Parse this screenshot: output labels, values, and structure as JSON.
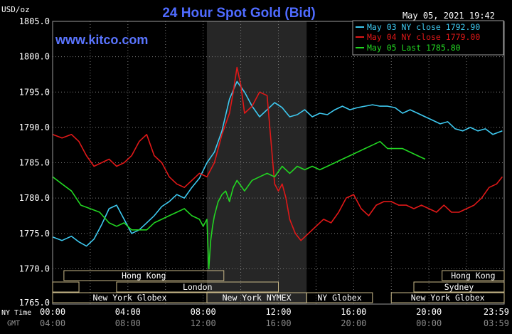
{
  "header": {
    "units": "USD/oz",
    "title": "24 Hour Spot Gold (Bid)",
    "timestamp": "May 05, 2021 19:42",
    "watermark": "www.kitco.com"
  },
  "colors": {
    "background": "#000000",
    "grid": "#7a7a7a",
    "text": "#ffffff",
    "title": "#4f6bff",
    "watermark": "#5a75ff",
    "may03": "#3ec9f0",
    "may04": "#e01818",
    "may05": "#22d622",
    "ny_shading": "#262626",
    "session_box": "#c8b888"
  },
  "legend": {
    "items": [
      {
        "label": "May 03 NY close 1792.90",
        "color": "#3ec9f0"
      },
      {
        "label": "May 04 NY close 1779.00",
        "color": "#e01818"
      },
      {
        "label": "May 05 Last 1785.80",
        "color": "#22d622"
      }
    ]
  },
  "axis": {
    "ny_time_label": "NY Time",
    "gmt_label": "GMT",
    "ny_ticks": [
      "00:00",
      "04:00",
      "08:00",
      "12:00",
      "16:00",
      "20:00",
      "23:59"
    ],
    "gmt_ticks": [
      "04:00",
      "08:00",
      "12:00",
      "16:00",
      "20:00",
      "00:00",
      "03:59"
    ]
  },
  "sessions": [
    {
      "label": "Hong Kong",
      "start": 0.6,
      "end": 9.1,
      "row": 0
    },
    {
      "label": "Hong Kong",
      "start": 20.7,
      "end": 24,
      "row": 0
    },
    {
      "label": "",
      "start": 0.0,
      "end": 1.4,
      "row": 1
    },
    {
      "label": "London",
      "start": 3.4,
      "end": 12.0,
      "row": 1
    },
    {
      "label": "Sydney",
      "start": 19.2,
      "end": 24,
      "row": 1
    },
    {
      "label": "New York Globex",
      "start": 0.0,
      "end": 8.2,
      "row": 2
    },
    {
      "label": "New York NYMEX",
      "start": 8.2,
      "end": 13.5,
      "row": 2
    },
    {
      "label": "NY Globex",
      "start": 13.5,
      "end": 17.0,
      "row": 2
    },
    {
      "label": "New York Globex",
      "start": 18.0,
      "end": 24,
      "row": 2
    }
  ],
  "chart_data": {
    "type": "line",
    "ylim": [
      1765,
      1805
    ],
    "xlim": [
      0,
      24
    ],
    "yticks": [
      1770,
      1775,
      1780,
      1785,
      1790,
      1795,
      1800,
      1805
    ],
    "ytick_labels": [
      "1770.0",
      "1775.0",
      "1780.0",
      "1785.0",
      "1790.0",
      "1795.0",
      "1800.0",
      "1805.0"
    ],
    "xticks": [
      0,
      4,
      8,
      12,
      16,
      20,
      24
    ],
    "ylabel": "USD/oz",
    "grid": true,
    "legend_position": "top-right",
    "shaded_region": [
      8.2,
      13.5
    ],
    "series": [
      {
        "name": "May 03 NY close 1792.90",
        "color": "#3ec9f0",
        "x": [
          0.0,
          0.5,
          1.0,
          1.4,
          1.8,
          2.2,
          2.6,
          3.0,
          3.4,
          3.8,
          4.2,
          4.6,
          5.0,
          5.4,
          5.8,
          6.2,
          6.6,
          7.0,
          7.4,
          7.8,
          8.2,
          8.6,
          9.0,
          9.4,
          9.8,
          10.2,
          10.6,
          11.0,
          11.4,
          11.8,
          12.2,
          12.6,
          13.0,
          13.4,
          13.8,
          14.2,
          14.6,
          15.0,
          15.4,
          15.8,
          16.2,
          16.6,
          17.0,
          17.4,
          17.8,
          18.2,
          18.6,
          19.0,
          19.4,
          19.8,
          20.2,
          20.6,
          21.0,
          21.4,
          21.8,
          22.2,
          22.6,
          23.0,
          23.4,
          23.9
        ],
        "y": [
          1774.5,
          1774.0,
          1774.6,
          1773.8,
          1773.2,
          1774.2,
          1776.2,
          1778.5,
          1779.0,
          1777.0,
          1775.0,
          1775.5,
          1776.5,
          1777.5,
          1778.8,
          1779.5,
          1780.5,
          1780.0,
          1781.5,
          1782.8,
          1785.0,
          1786.5,
          1789.5,
          1794.0,
          1796.5,
          1795.0,
          1793.0,
          1791.5,
          1792.5,
          1793.5,
          1792.8,
          1791.5,
          1791.8,
          1792.5,
          1791.5,
          1792.0,
          1791.8,
          1792.5,
          1793.0,
          1792.5,
          1792.8,
          1793.0,
          1793.2,
          1793.0,
          1793.0,
          1792.8,
          1792.0,
          1792.5,
          1792.0,
          1791.5,
          1791.0,
          1790.5,
          1790.8,
          1789.8,
          1789.5,
          1790.0,
          1789.5,
          1789.8,
          1789.0,
          1789.5
        ]
      },
      {
        "name": "May 04 NY close 1779.00",
        "color": "#e01818",
        "x": [
          0.0,
          0.5,
          1.0,
          1.4,
          1.8,
          2.2,
          2.6,
          3.0,
          3.4,
          3.8,
          4.2,
          4.6,
          5.0,
          5.4,
          5.8,
          6.2,
          6.6,
          7.0,
          7.4,
          7.8,
          8.2,
          8.6,
          9.0,
          9.4,
          9.6,
          9.8,
          10.0,
          10.2,
          10.6,
          11.0,
          11.4,
          11.8,
          12.0,
          12.2,
          12.4,
          12.6,
          12.9,
          13.2,
          13.6,
          14.0,
          14.4,
          14.8,
          15.2,
          15.6,
          16.0,
          16.4,
          16.8,
          17.2,
          17.6,
          18.0,
          18.4,
          18.8,
          19.2,
          19.6,
          20.0,
          20.4,
          20.8,
          21.2,
          21.6,
          22.0,
          22.4,
          22.8,
          23.2,
          23.6,
          23.9
        ],
        "y": [
          1789.0,
          1788.5,
          1789.0,
          1788.0,
          1786.0,
          1784.5,
          1785.0,
          1785.5,
          1784.5,
          1785.0,
          1786.0,
          1788.0,
          1789.0,
          1786.0,
          1785.0,
          1783.0,
          1782.0,
          1781.5,
          1782.5,
          1783.5,
          1783.0,
          1785.0,
          1789.0,
          1792.0,
          1795.0,
          1798.5,
          1796.0,
          1792.0,
          1793.0,
          1795.0,
          1794.5,
          1782.0,
          1781.0,
          1782.0,
          1780.0,
          1777.0,
          1775.0,
          1774.0,
          1775.0,
          1776.0,
          1777.0,
          1776.5,
          1778.0,
          1780.0,
          1780.5,
          1778.5,
          1777.5,
          1779.0,
          1779.5,
          1779.5,
          1779.0,
          1779.0,
          1778.5,
          1779.0,
          1778.5,
          1778.0,
          1779.0,
          1778.0,
          1778.0,
          1778.5,
          1779.0,
          1780.0,
          1781.5,
          1782.0,
          1783.0
        ]
      },
      {
        "name": "May 05 Last 1785.80",
        "color": "#22d622",
        "x": [
          0.0,
          0.5,
          1.0,
          1.5,
          2.0,
          2.5,
          3.0,
          3.4,
          3.8,
          4.2,
          4.6,
          5.0,
          5.4,
          5.8,
          6.2,
          6.6,
          7.0,
          7.4,
          7.8,
          8.0,
          8.2,
          8.3,
          8.4,
          8.5,
          8.6,
          8.8,
          9.0,
          9.2,
          9.4,
          9.6,
          9.8,
          10.2,
          10.6,
          11.0,
          11.4,
          11.8,
          12.2,
          12.6,
          13.0,
          13.4,
          13.8,
          14.2,
          14.6,
          15.0,
          15.4,
          15.8,
          16.2,
          16.6,
          17.0,
          17.4,
          17.8,
          18.2,
          18.6,
          19.0,
          19.4,
          19.8
        ],
        "y": [
          1783.0,
          1782.0,
          1781.0,
          1779.0,
          1778.5,
          1778.0,
          1776.5,
          1776.0,
          1776.5,
          1775.5,
          1775.5,
          1775.5,
          1776.5,
          1777.0,
          1777.5,
          1778.0,
          1778.5,
          1777.5,
          1777.0,
          1776.0,
          1777.0,
          1770.0,
          1774.0,
          1776.0,
          1777.5,
          1779.5,
          1780.5,
          1781.0,
          1779.5,
          1781.5,
          1782.5,
          1781.0,
          1782.5,
          1783.0,
          1783.5,
          1783.0,
          1784.5,
          1783.5,
          1784.5,
          1784.0,
          1784.5,
          1784.0,
          1784.5,
          1785.0,
          1785.5,
          1786.0,
          1786.5,
          1787.0,
          1787.5,
          1788.0,
          1787.0,
          1787.0,
          1787.0,
          1786.5,
          1786.0,
          1785.5
        ]
      }
    ]
  }
}
